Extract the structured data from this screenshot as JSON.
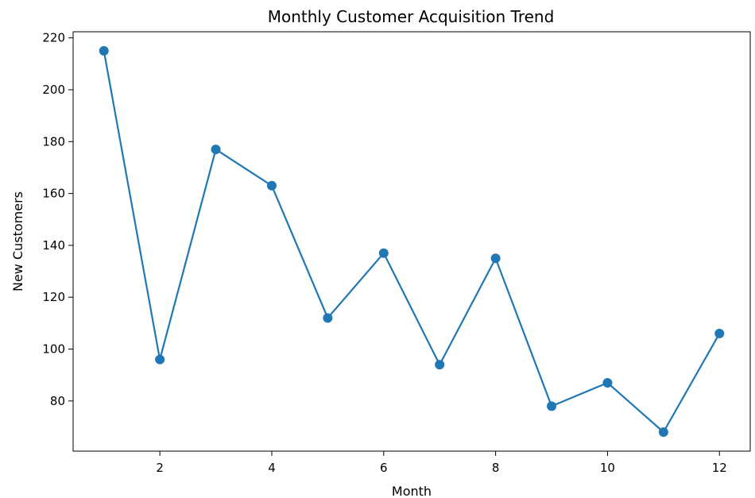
{
  "chart_data": {
    "type": "line",
    "title": "Monthly Customer Acquisition Trend",
    "xlabel": "Month",
    "ylabel": "New Customers",
    "x": [
      1,
      2,
      3,
      4,
      5,
      6,
      7,
      8,
      9,
      10,
      11,
      12
    ],
    "series": [
      {
        "values": [
          215,
          96,
          177,
          163,
          112,
          137,
          94,
          135,
          78,
          87,
          68,
          106
        ]
      }
    ],
    "xticks": [
      2,
      4,
      6,
      8,
      10,
      12
    ],
    "yticks": [
      80,
      100,
      120,
      140,
      160,
      180,
      200,
      220
    ],
    "xlim": [
      0.45,
      12.55
    ],
    "ylim": [
      60.65,
      222.35
    ],
    "grid": false,
    "line_color": "#1f77b4",
    "markers": true
  }
}
